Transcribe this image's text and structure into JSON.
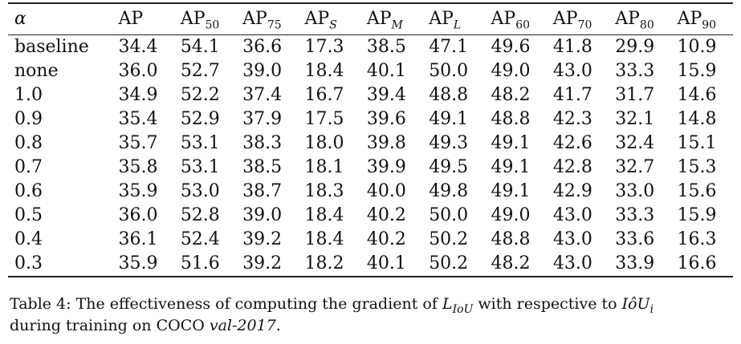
{
  "table": {
    "header": [
      {
        "main": "α",
        "sub": ""
      },
      {
        "main": "AP",
        "sub": ""
      },
      {
        "main": "AP",
        "sub": "50"
      },
      {
        "main": "AP",
        "sub": "75"
      },
      {
        "main": "AP",
        "sub": "S"
      },
      {
        "main": "AP",
        "sub": "M"
      },
      {
        "main": "AP",
        "sub": "L"
      },
      {
        "main": "AP",
        "sub": "60"
      },
      {
        "main": "AP",
        "sub": "70"
      },
      {
        "main": "AP",
        "sub": "80"
      },
      {
        "main": "AP",
        "sub": "90"
      }
    ],
    "rows": [
      [
        "baseline",
        "34.4",
        "54.1",
        "36.6",
        "17.3",
        "38.5",
        "47.1",
        "49.6",
        "41.8",
        "29.9",
        "10.9"
      ],
      [
        "none",
        "36.0",
        "52.7",
        "39.0",
        "18.4",
        "40.1",
        "50.0",
        "49.0",
        "43.0",
        "33.3",
        "15.9"
      ],
      [
        "1.0",
        "34.9",
        "52.2",
        "37.4",
        "16.7",
        "39.4",
        "48.8",
        "48.2",
        "41.7",
        "31.7",
        "14.6"
      ],
      [
        "0.9",
        "35.4",
        "52.9",
        "37.9",
        "17.5",
        "39.6",
        "49.1",
        "48.8",
        "42.3",
        "32.1",
        "14.8"
      ],
      [
        "0.8",
        "35.7",
        "53.1",
        "38.3",
        "18.0",
        "39.8",
        "49.3",
        "49.1",
        "42.6",
        "32.4",
        "15.1"
      ],
      [
        "0.7",
        "35.8",
        "53.1",
        "38.5",
        "18.1",
        "39.9",
        "49.5",
        "49.1",
        "42.8",
        "32.7",
        "15.3"
      ],
      [
        "0.6",
        "35.9",
        "53.0",
        "38.7",
        "18.3",
        "40.0",
        "49.8",
        "49.1",
        "42.9",
        "33.0",
        "15.6"
      ],
      [
        "0.5",
        "36.0",
        "52.8",
        "39.0",
        "18.4",
        "40.2",
        "50.0",
        "49.0",
        "43.0",
        "33.3",
        "15.9"
      ],
      [
        "0.4",
        "36.1",
        "52.4",
        "39.2",
        "18.4",
        "40.2",
        "50.2",
        "48.8",
        "43.0",
        "33.6",
        "16.3"
      ],
      [
        "0.3",
        "35.9",
        "51.6",
        "39.2",
        "18.2",
        "40.1",
        "50.2",
        "48.2",
        "43.0",
        "33.9",
        "16.6"
      ]
    ]
  },
  "caption": {
    "label": "Table 4:",
    "text_before": "The effectiveness of computing the gradient of",
    "math_l": "L",
    "math_l_sub": "IoU",
    "text_middle": "with respective to",
    "math_iou": "IôU",
    "math_iou_sub": "i",
    "text_line2": "during training on COCO",
    "dataset": "val-2017",
    "end": "."
  }
}
